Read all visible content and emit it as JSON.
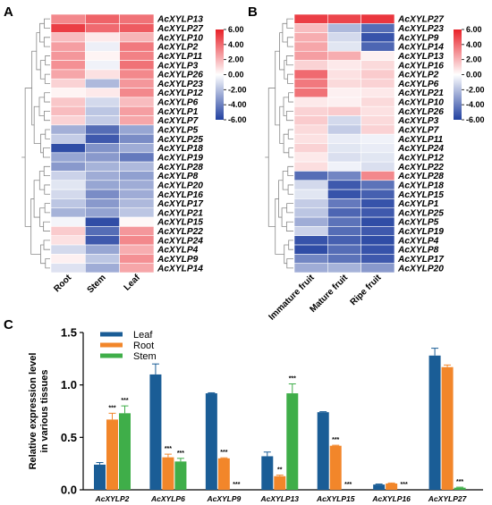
{
  "chart_data": [
    {
      "type": "heatmap",
      "panel": "A",
      "columns": [
        "Root",
        "Stem",
        "Leaf"
      ],
      "rows": [
        "AcXYLP13",
        "AcXYLP27",
        "AcXYLP10",
        "AcXYLP2",
        "AcXYLP11",
        "AcXYLP3",
        "AcXYLP26",
        "AcXYLP23",
        "AcXYLP12",
        "AcXYLP6",
        "AcXYLP1",
        "AcXYLP7",
        "AcXYLP5",
        "AcXYLP25",
        "AcXYLP18",
        "AcXYLP19",
        "AcXYLP28",
        "AcXYLP8",
        "AcXYLP20",
        "AcXYLP16",
        "AcXYLP17",
        "AcXYLP21",
        "AcXYLP15",
        "AcXYLP22",
        "AcXYLP24",
        "AcXYLP4",
        "AcXYLP9",
        "AcXYLP14"
      ],
      "values": [
        [
          3.2,
          4.2,
          3.8
        ],
        [
          5.2,
          4.0,
          4.4
        ],
        [
          1.8,
          0.6,
          2.0
        ],
        [
          2.6,
          -0.5,
          3.6
        ],
        [
          2.8,
          0.3,
          3.4
        ],
        [
          3.0,
          -0.4,
          3.8
        ],
        [
          2.4,
          0.8,
          3.2
        ],
        [
          1.2,
          -2.2,
          2.8
        ],
        [
          0.3,
          0.6,
          3.2
        ],
        [
          1.5,
          -1.2,
          1.8
        ],
        [
          1.8,
          -1.8,
          2.6
        ],
        [
          1.2,
          -1.6,
          2.4
        ],
        [
          -2.5,
          -4.6,
          -2.8
        ],
        [
          -1.6,
          -5.2,
          -3.6
        ],
        [
          -5.6,
          -3.4,
          -2.6
        ],
        [
          -2.8,
          -3.2,
          -4.2
        ],
        [
          -3.2,
          -2.4,
          -2.2
        ],
        [
          -1.4,
          -2.6,
          -3.0
        ],
        [
          -0.8,
          -2.8,
          -2.6
        ],
        [
          -1.2,
          -3.6,
          -2.6
        ],
        [
          -1.8,
          -3.2,
          -2.2
        ],
        [
          -2.4,
          -2.9,
          -1.8
        ],
        [
          -0.3,
          -5.6,
          0.2
        ],
        [
          1.4,
          -4.6,
          2.8
        ],
        [
          0.8,
          -5.2,
          3.2
        ],
        [
          -1.2,
          -2.8,
          2.2
        ],
        [
          0.4,
          -1.8,
          3.0
        ],
        [
          -0.9,
          -2.6,
          2.4
        ]
      ],
      "colorbar": {
        "min": -6,
        "max": 6,
        "ticks": [
          "6.00",
          "4.00",
          "2.00",
          "0.00",
          "-2.00",
          "-4.00",
          "-6.00"
        ]
      }
    },
    {
      "type": "heatmap",
      "panel": "B",
      "columns": [
        "Immature fruit",
        "Mature fruit",
        "Ripe fruit"
      ],
      "rows": [
        "AcXYLP27",
        "AcXYLP23",
        "AcXYLP9",
        "AcXYLP14",
        "AcXYLP13",
        "AcXYLP16",
        "AcXYLP2",
        "AcXYLP6",
        "AcXYLP21",
        "AcXYLP10",
        "AcXYLP26",
        "AcXYLP3",
        "AcXYLP7",
        "AcXYLP11",
        "AcXYLP24",
        "AcXYLP12",
        "AcXYLP22",
        "AcXYLP28",
        "AcXYLP18",
        "AcXYLP15",
        "AcXYLP1",
        "AcXYLP25",
        "AcXYLP5",
        "AcXYLP19",
        "AcXYLP4",
        "AcXYLP8",
        "AcXYLP17",
        "AcXYLP20"
      ],
      "values": [
        [
          5.2,
          5.0,
          5.4
        ],
        [
          1.8,
          -2.2,
          -4.6
        ],
        [
          2.2,
          -1.2,
          -5.4
        ],
        [
          2.4,
          -0.8,
          -4.8
        ],
        [
          2.6,
          2.2,
          0.4
        ],
        [
          1.2,
          0.6,
          1.0
        ],
        [
          4.0,
          0.8,
          1.4
        ],
        [
          3.6,
          1.0,
          1.2
        ],
        [
          3.8,
          0.4,
          0.6
        ],
        [
          0.6,
          0.4,
          1.0
        ],
        [
          1.2,
          1.4,
          0.8
        ],
        [
          1.4,
          -1.2,
          1.0
        ],
        [
          1.0,
          -1.6,
          1.2
        ],
        [
          0.8,
          -0.6,
          -0.4
        ],
        [
          1.2,
          -0.8,
          -0.6
        ],
        [
          0.6,
          -1.0,
          -0.8
        ],
        [
          0.9,
          -0.4,
          -1.0
        ],
        [
          -4.6,
          -3.8,
          3.2
        ],
        [
          -1.2,
          -5.2,
          -4.4
        ],
        [
          -0.8,
          -5.4,
          -5.0
        ],
        [
          -1.6,
          -4.2,
          -5.4
        ],
        [
          -1.8,
          -4.8,
          -5.2
        ],
        [
          -2.6,
          -4.4,
          -5.6
        ],
        [
          -1.4,
          -4.6,
          -5.2
        ],
        [
          -5.4,
          -5.0,
          -5.6
        ],
        [
          -5.6,
          -4.6,
          -5.4
        ],
        [
          -3.8,
          -4.4,
          -5.2
        ],
        [
          -2.6,
          -2.4,
          -3.2
        ]
      ],
      "colorbar": {
        "min": -6,
        "max": 6,
        "ticks": [
          "6.00",
          "4.00",
          "2.00",
          "0.00",
          "-2.00",
          "-4.00",
          "-6.00"
        ]
      }
    },
    {
      "type": "bar",
      "panel": "C",
      "ylabel": "Relative expression level\nin various tissues",
      "ylim": [
        0,
        1.5
      ],
      "yticks": [
        "0.0",
        "0.5",
        "1.0",
        "1.5"
      ],
      "categories": [
        "AcXYLP2",
        "AcXYLP6",
        "AcXYLP9",
        "AcXYLP13",
        "AcXYLP15",
        "AcXYLP16",
        "AcXYLP27"
      ],
      "series": [
        {
          "name": "Leaf",
          "color": "#1a5d96",
          "values": [
            0.24,
            1.1,
            0.92,
            0.32,
            0.74,
            0.05,
            1.28
          ],
          "errors": [
            0.02,
            0.1,
            0.005,
            0.04,
            0.005,
            0.005,
            0.07
          ]
        },
        {
          "name": "Root",
          "color": "#f2862a",
          "values": [
            0.67,
            0.31,
            0.3,
            0.13,
            0.42,
            0.06,
            1.17
          ],
          "errors": [
            0.06,
            0.03,
            0.005,
            0.01,
            0.005,
            0.005,
            0.02
          ]
        },
        {
          "name": "Stem",
          "color": "#3fae49",
          "values": [
            0.73,
            0.27,
            0.0,
            0.92,
            0.0,
            0.0,
            0.02
          ],
          "errors": [
            0.07,
            0.03,
            0.0,
            0.09,
            0.0,
            0.0,
            0.005
          ]
        }
      ],
      "significance": [
        [
          "",
          "***",
          "***"
        ],
        [
          "",
          "***",
          "***"
        ],
        [
          "",
          "***",
          "***"
        ],
        [
          "",
          "**",
          "***"
        ],
        [
          "",
          "***",
          "***"
        ],
        [
          "",
          "",
          "***"
        ],
        [
          "",
          "",
          "***"
        ]
      ],
      "legend_position": "top-left"
    }
  ]
}
